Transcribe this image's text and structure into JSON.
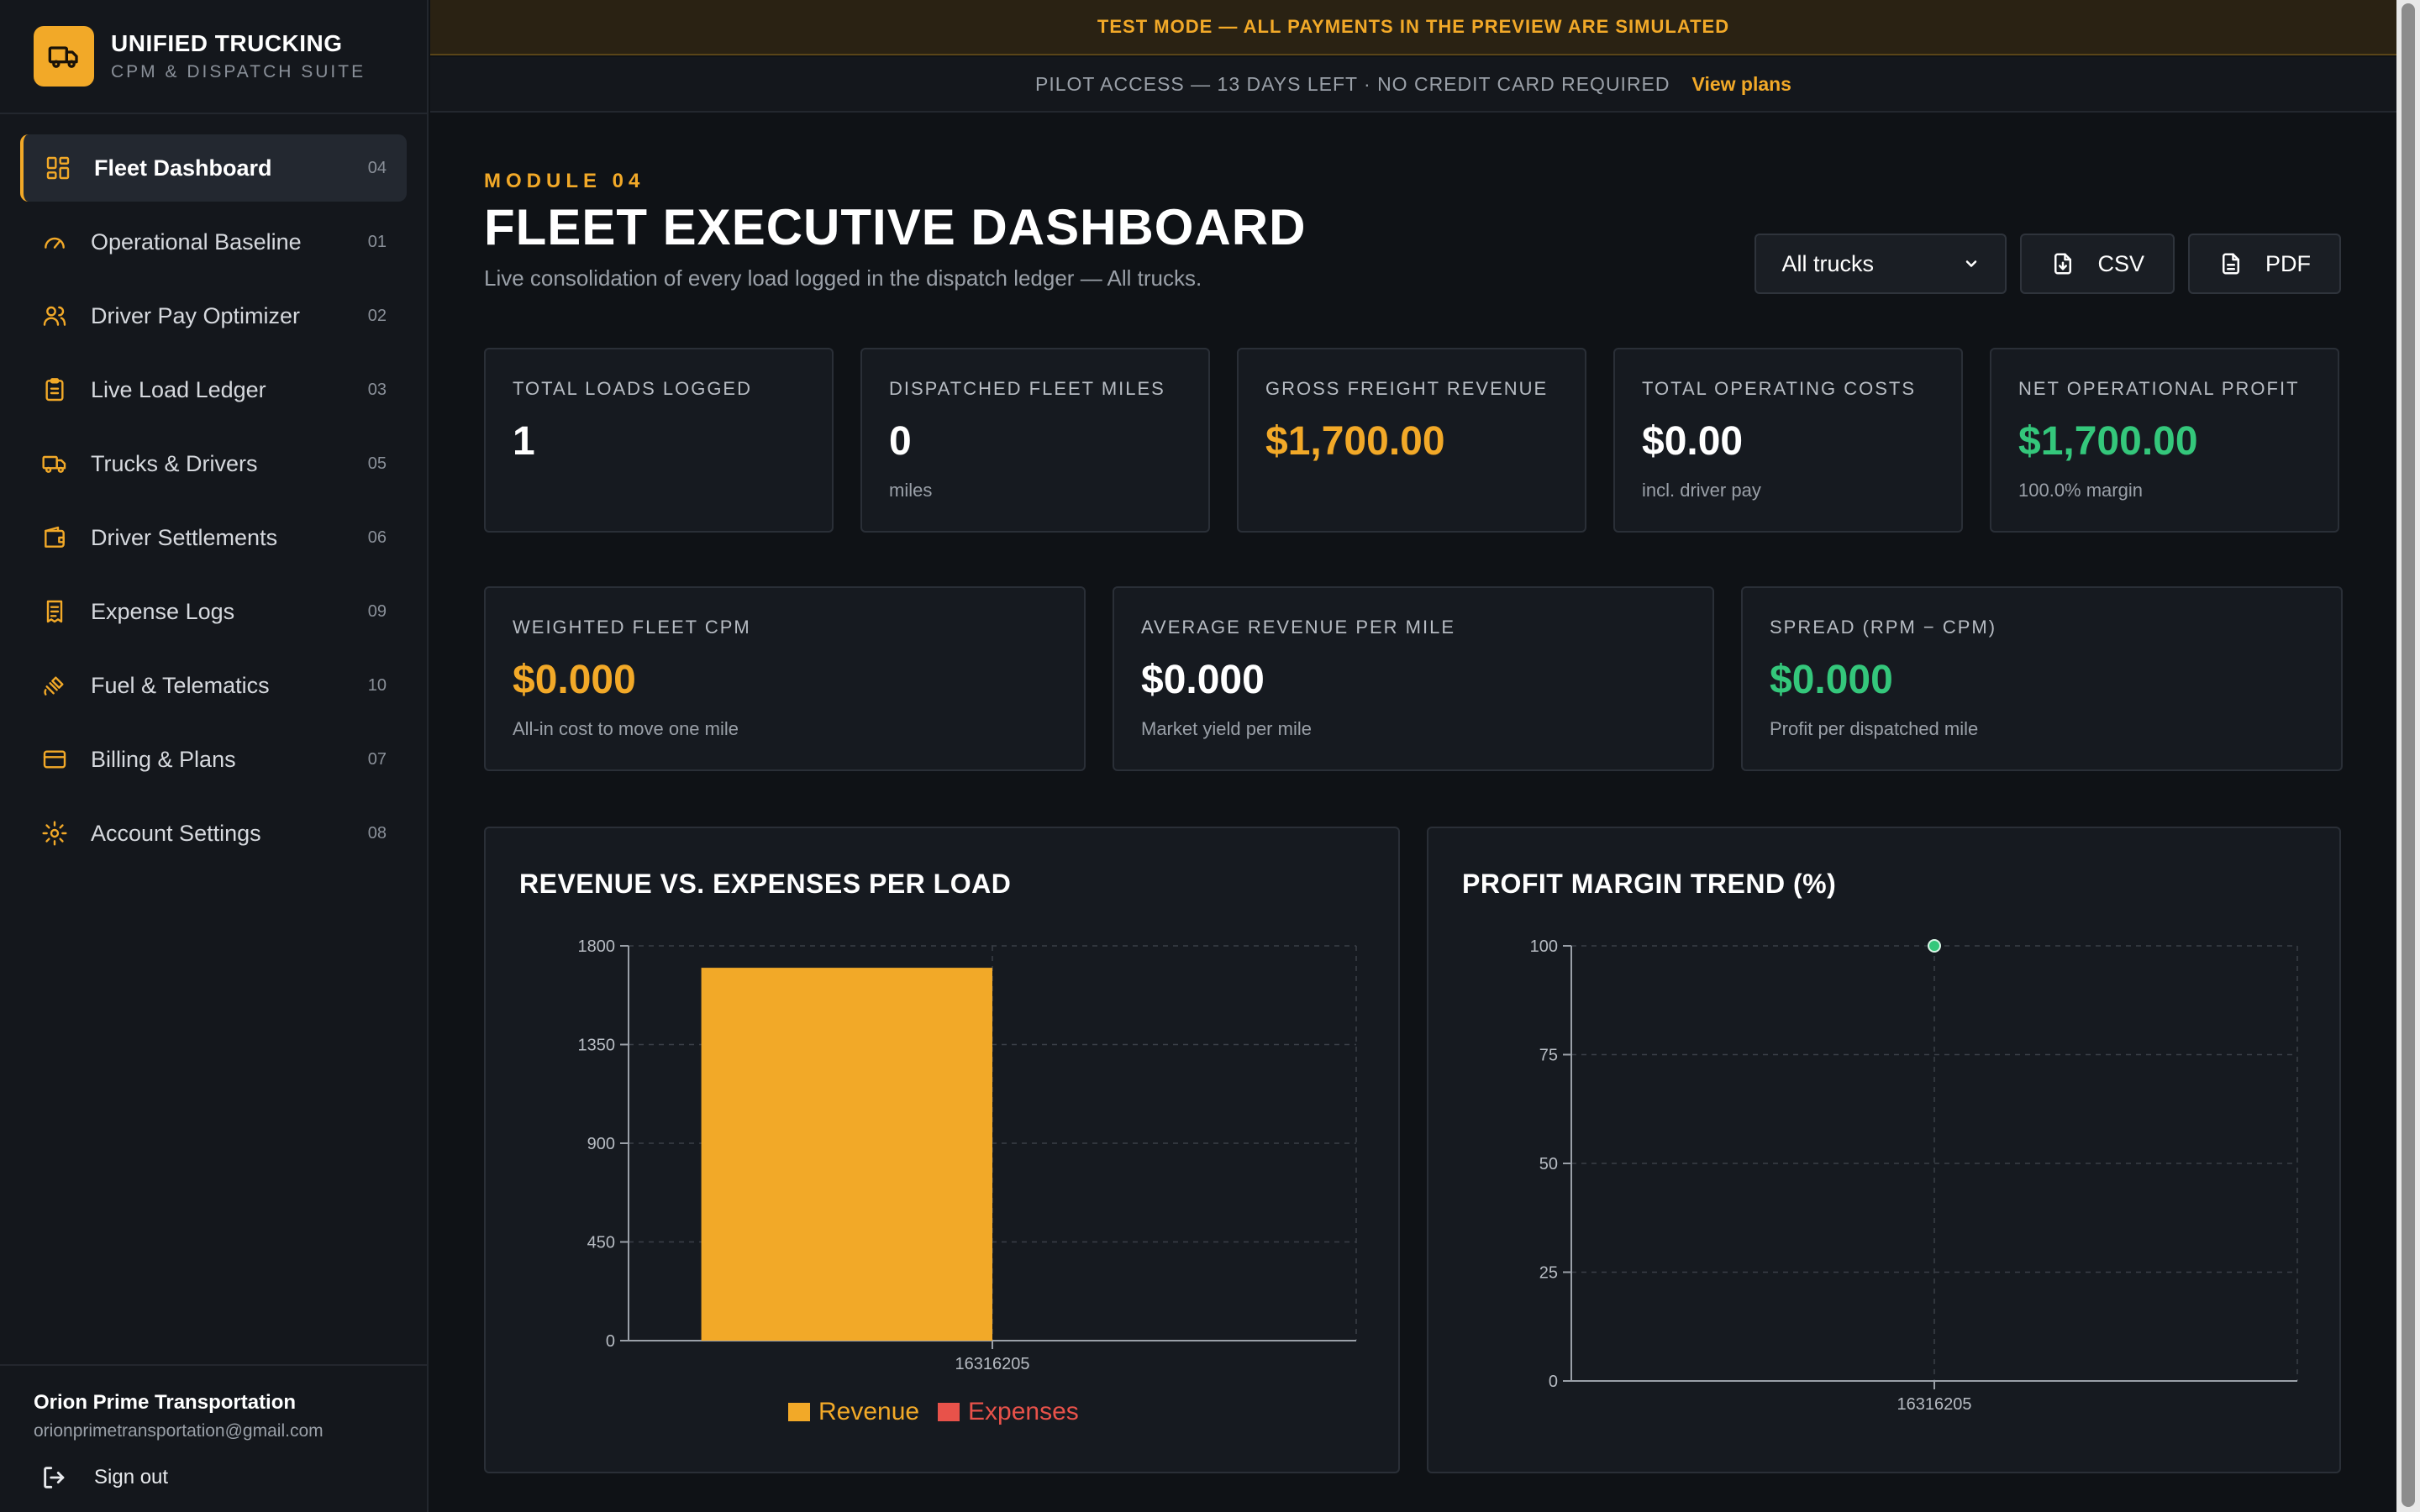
{
  "brand": {
    "title": "UNIFIED TRUCKING",
    "subtitle": "CPM & DISPATCH SUITE"
  },
  "nav": [
    {
      "label": "Fleet Dashboard",
      "num": "04",
      "icon": "dashboard-icon",
      "active": true
    },
    {
      "label": "Operational Baseline",
      "num": "01",
      "icon": "gauge-icon"
    },
    {
      "label": "Driver Pay Optimizer",
      "num": "02",
      "icon": "users-icon"
    },
    {
      "label": "Live Load Ledger",
      "num": "03",
      "icon": "clipboard-icon"
    },
    {
      "label": "Trucks & Drivers",
      "num": "05",
      "icon": "truck-icon"
    },
    {
      "label": "Driver Settlements",
      "num": "06",
      "icon": "wallet-icon"
    },
    {
      "label": "Expense Logs",
      "num": "09",
      "icon": "receipt-icon"
    },
    {
      "label": "Fuel & Telematics",
      "num": "10",
      "icon": "satellite-icon"
    },
    {
      "label": "Billing & Plans",
      "num": "07",
      "icon": "credit-card-icon"
    },
    {
      "label": "Account Settings",
      "num": "08",
      "icon": "gear-icon"
    }
  ],
  "account": {
    "name": "Orion Prime Transportation",
    "email": "orionprimetransportation@gmail.com",
    "signout": "Sign out"
  },
  "banners": {
    "test": "TEST MODE — ALL PAYMENTS IN THE PREVIEW ARE SIMULATED",
    "pilot": "PILOT ACCESS — 13 DAYS LEFT · NO CREDIT CARD REQUIRED",
    "view_plans": "View plans"
  },
  "header": {
    "module": "MODULE 04",
    "title": "FLEET EXECUTIVE DASHBOARD",
    "subtitle": "Live consolidation of every load logged in the dispatch ledger — All trucks.",
    "truck_filter": "All trucks",
    "csv_label": "CSV",
    "pdf_label": "PDF"
  },
  "kpis": [
    {
      "label": "TOTAL LOADS LOGGED",
      "value": "1",
      "sub": "",
      "color": "#ffffff"
    },
    {
      "label": "DISPATCHED FLEET MILES",
      "value": "0",
      "sub": "miles",
      "color": "#ffffff"
    },
    {
      "label": "GROSS FREIGHT REVENUE",
      "value": "$1,700.00",
      "sub": "",
      "color": "#f2a928"
    },
    {
      "label": "TOTAL OPERATING COSTS",
      "value": "$0.00",
      "sub": "incl. driver pay",
      "color": "#ffffff"
    },
    {
      "label": "NET OPERATIONAL PROFIT",
      "value": "$1,700.00",
      "sub": "100.0% margin",
      "color": "#34c77b"
    }
  ],
  "metrics": [
    {
      "label": "WEIGHTED FLEET CPM",
      "value": "$0.000",
      "sub": "All-in cost to move one mile",
      "color": "#f2a928"
    },
    {
      "label": "AVERAGE REVENUE PER MILE",
      "value": "$0.000",
      "sub": "Market yield per mile",
      "color": "#ffffff"
    },
    {
      "label": "SPREAD (RPM − CPM)",
      "value": "$0.000",
      "sub": "Profit per dispatched mile",
      "color": "#34c77b"
    }
  ],
  "chart_data": [
    {
      "type": "bar",
      "title": "REVENUE VS. EXPENSES PER LOAD",
      "categories": [
        "16316205"
      ],
      "series": [
        {
          "name": "Revenue",
          "values": [
            1700
          ],
          "color": "#f2a928"
        },
        {
          "name": "Expenses",
          "values": [
            0
          ],
          "color": "#e8524a"
        }
      ],
      "yticks": [
        "0",
        "450",
        "900",
        "1350",
        "1800"
      ],
      "ylim": [
        0,
        1800
      ],
      "grid": true,
      "legend": "bottom"
    },
    {
      "type": "scatter",
      "title": "PROFIT MARGIN TREND (%)",
      "x": [
        "16316205"
      ],
      "series": [
        {
          "values": [
            100
          ],
          "color": "#34c77b"
        }
      ],
      "yticks": [
        "0",
        "25",
        "50",
        "75",
        "100"
      ],
      "ylim": [
        0,
        100
      ],
      "grid": true
    }
  ]
}
